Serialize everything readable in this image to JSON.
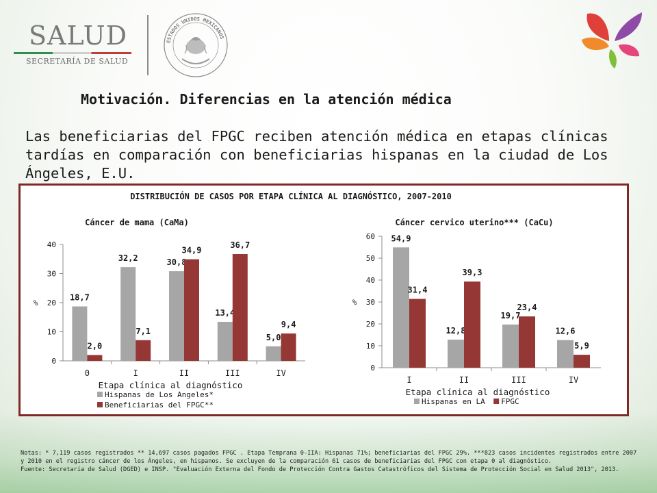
{
  "header": {
    "logo_main": "SALUD",
    "logo_sub": "SECRETARÍA DE SALUD",
    "seal_text": "ESTADOS UNIDOS MEXICANOS"
  },
  "slide": {
    "title": "Motivación. Diferencias en la atención médica",
    "intro": "Las beneficiarias del FPGC reciben atención médica en etapas clínicas tardías en comparación con beneficiarias hispanas en la ciudad de Los Ángeles, E.U."
  },
  "colors": {
    "series_a": "#a6a6a6",
    "series_b": "#953735",
    "frame": "#7d2a26"
  },
  "chart_data": {
    "title": "DISTRIBUCIÓN DE CASOS POR ETAPA CLÍNICA AL DIAGNÓSTICO, 2007-2010",
    "charts": [
      {
        "type": "bar",
        "title": "Cáncer de mama (CaMa)",
        "xlabel": "Etapa clínica al diagnóstico",
        "ylabel": "%",
        "ylim": [
          0,
          40
        ],
        "yticks": [
          0,
          10,
          20,
          30,
          40
        ],
        "categories": [
          "0",
          "I",
          "II",
          "III",
          "IV"
        ],
        "legend_position": "bottom",
        "series": [
          {
            "name": "Hispanas de Los Angeles*",
            "values": [
              18.7,
              32.2,
              30.8,
              13.4,
              5.0
            ],
            "labels": [
              "18,7",
              "32,2",
              "30,8",
              "13,4",
              "5,0"
            ]
          },
          {
            "name": "Beneficiarias del FPGC**",
            "values": [
              2.0,
              7.1,
              34.9,
              36.7,
              9.4
            ],
            "labels": [
              "2,0",
              "7,1",
              "34,9",
              "36,7",
              "9,4"
            ]
          }
        ]
      },
      {
        "type": "bar",
        "title": "Cáncer cervico uterino*** (CaCu)",
        "xlabel": "Etapa clínica al diagnóstico",
        "ylabel": "%",
        "ylim": [
          0,
          60
        ],
        "yticks": [
          0,
          10,
          20,
          30,
          40,
          50,
          60
        ],
        "categories": [
          "I",
          "II",
          "III",
          "IV"
        ],
        "legend_position": "bottom",
        "series": [
          {
            "name": "Hispanas en LA",
            "values": [
              54.9,
              12.8,
              19.7,
              12.6
            ],
            "labels": [
              "54,9",
              "12,8",
              "19,7",
              "12,6"
            ]
          },
          {
            "name": "FPGC",
            "values": [
              31.4,
              39.3,
              23.4,
              5.9
            ],
            "labels": [
              "31,4",
              "39,3",
              "23,4",
              "5,9"
            ]
          }
        ]
      }
    ]
  },
  "footer": {
    "notes": "Notas: * 7,119 casos registrados ** 14,697 casos pagados FPGC . Etapa Temprana 0-IIA: Hispanas 71%; beneficiarias del FPGC 29%. ***823 casos incidentes registrados entre 2007 y 2010 en el registro cáncer de los Ángeles, en hispanos. Se excluyen de la comparación 61 casos de beneficiarias del FPGC con etapa 0 al diagnóstico.",
    "source": "Fuente: Secretaría de Salud (DGED) e INSP. \"Evaluación Externa del Fondo de Protección Contra Gastos Catastróficos del Sistema de Protección Social en Salud 2013\", 2013."
  }
}
